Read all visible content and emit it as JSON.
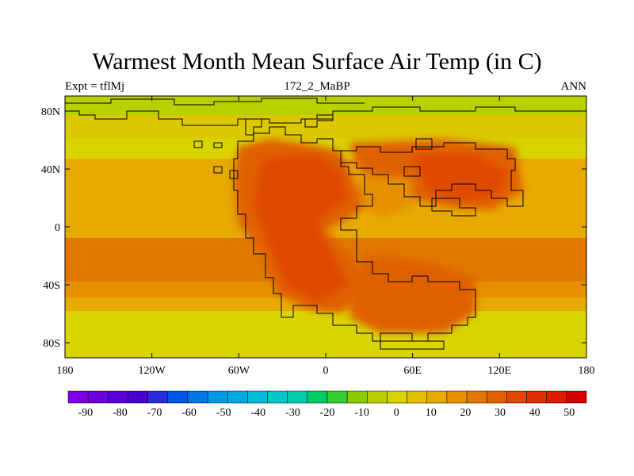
{
  "title": "Warmest Month Mean Surface Air Temp (in C)",
  "subtitle_left": "Expt = tflMj",
  "subtitle_center": "172_2_MaBP",
  "subtitle_right": "ANN",
  "lon_ticks": [
    "180",
    "120W",
    "60W",
    "0",
    "60E",
    "120E",
    "180"
  ],
  "lat_ticks": [
    "80N",
    "40N",
    "0",
    "40S",
    "80S"
  ],
  "colorbar": {
    "min": -95,
    "max": 55,
    "step": 5,
    "labels": [
      "-90",
      "-80",
      "-70",
      "-60",
      "-50",
      "-40",
      "-30",
      "-20",
      "-10",
      "0",
      "10",
      "20",
      "30",
      "40",
      "50"
    ],
    "colors": [
      "#7b00e6",
      "#6a00e0",
      "#5a00d8",
      "#4a00d0",
      "#2a2ae0",
      "#0055e6",
      "#0077e6",
      "#0099e6",
      "#00aae0",
      "#00bbd8",
      "#00c8c8",
      "#00ccaa",
      "#00cc66",
      "#33cc33",
      "#88cc00",
      "#b8cc00",
      "#d4d400",
      "#e0c000",
      "#e6aa00",
      "#e69000",
      "#e07800",
      "#e06000",
      "#e04800",
      "#e03000",
      "#e01a00",
      "#d40000"
    ]
  }
}
